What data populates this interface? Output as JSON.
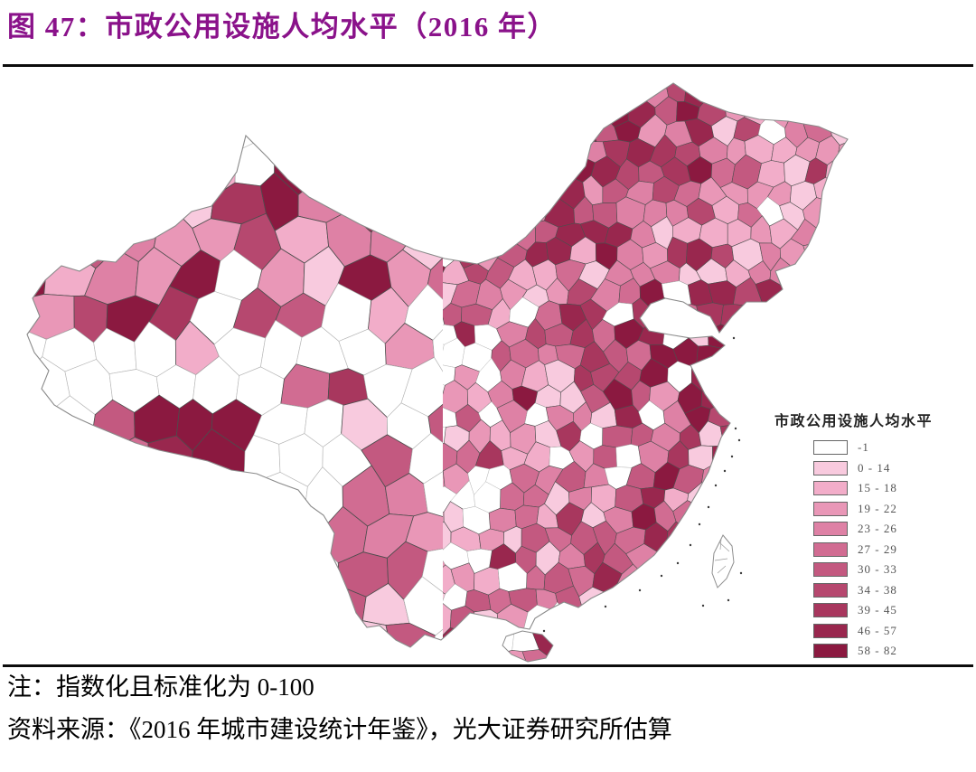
{
  "figure": {
    "title": "图 47：市政公用设施人均水平（2016 年）",
    "title_color": "#8A128A"
  },
  "legend": {
    "title": "市政公用设施人均水平",
    "classes": [
      {
        "label": "-1",
        "color": "#FFFFFF"
      },
      {
        "label": "0 - 14",
        "color": "#F8CADE"
      },
      {
        "label": "15 - 18",
        "color": "#F2ADC9"
      },
      {
        "label": "19 - 22",
        "color": "#E997B7"
      },
      {
        "label": "23 - 26",
        "color": "#DE81A5"
      },
      {
        "label": "27 - 29",
        "color": "#D16C92"
      },
      {
        "label": "30 - 33",
        "color": "#C35980"
      },
      {
        "label": "34 - 38",
        "color": "#B6486F"
      },
      {
        "label": "39 - 45",
        "color": "#A8375E"
      },
      {
        "label": "46 - 57",
        "color": "#99274E"
      },
      {
        "label": "58 - 82",
        "color": "#8B1940"
      }
    ]
  },
  "notes": {
    "note": "注：指数化且标准化为 0-100",
    "source": "资料来源：《2016 年城市建设统计年鉴》，光大证券研究所估算"
  },
  "chart_data": {
    "type": "heatmap",
    "subtype": "choropleth-map",
    "region": "中国（地级行政区划）",
    "title": "市政公用设施人均水平（2016 年）",
    "legend_title": "市政公用设施人均水平",
    "legend_position": "right",
    "unit": "指数（指数化且标准化为 0-100）",
    "classes": [
      {
        "range": "-1",
        "meaning": "无数据/缺失",
        "color": "#FFFFFF"
      },
      {
        "range": "0 - 14",
        "color": "#F8CADE"
      },
      {
        "range": "15 - 18",
        "color": "#F2ADC9"
      },
      {
        "range": "19 - 22",
        "color": "#E997B7"
      },
      {
        "range": "23 - 26",
        "color": "#DE81A5"
      },
      {
        "range": "27 - 29",
        "color": "#D16C92"
      },
      {
        "range": "30 - 33",
        "color": "#C35980"
      },
      {
        "range": "34 - 38",
        "color": "#B6486F"
      },
      {
        "range": "39 - 45",
        "color": "#A8375E"
      },
      {
        "range": "46 - 57",
        "color": "#99274E"
      },
      {
        "range": "58 - 82",
        "color": "#8B1940"
      }
    ],
    "note": "注：指数化且标准化为 0-100",
    "source": "资料来源：《2016 年城市建设统计年鉴》，光大证券研究所估算"
  }
}
